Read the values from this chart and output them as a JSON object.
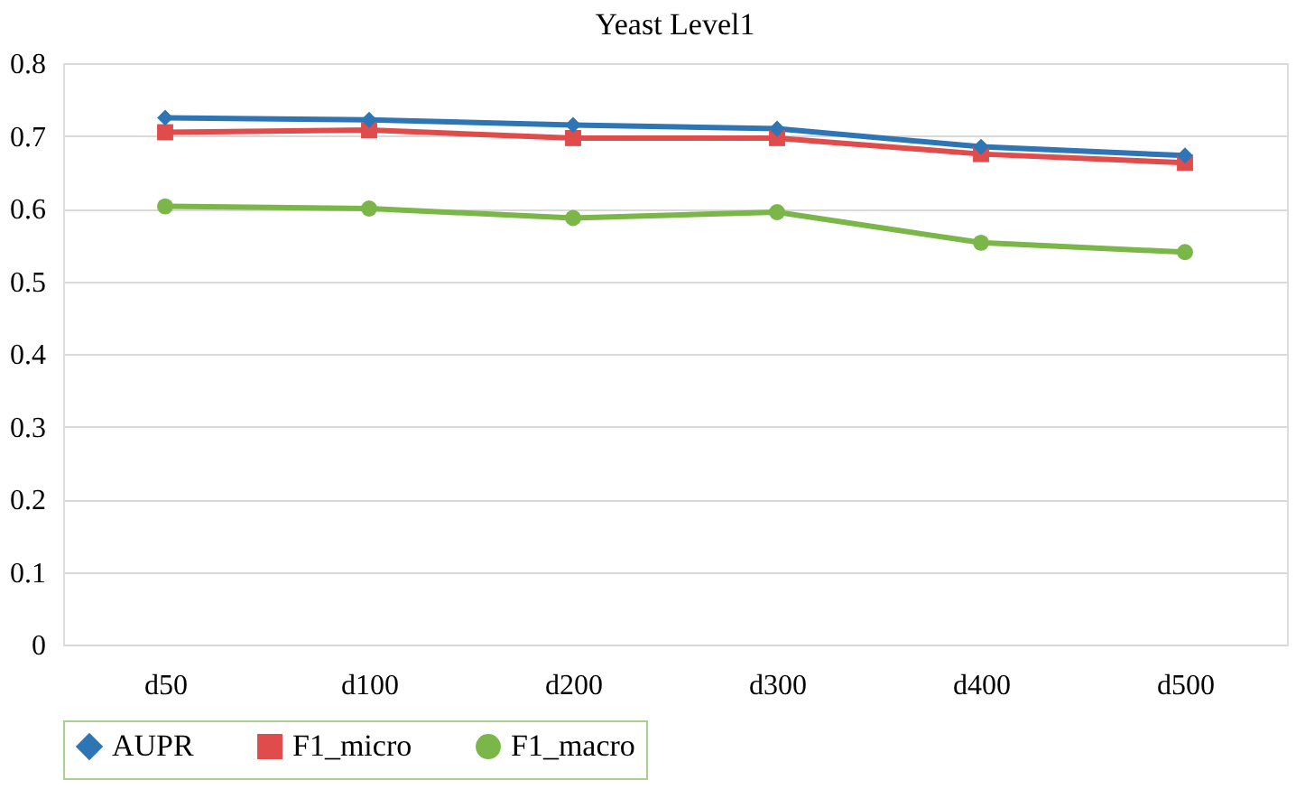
{
  "chart_data": {
    "type": "line",
    "title": "Yeast  Level1",
    "categories": [
      "d50",
      "d100",
      "d200",
      "d300",
      "d400",
      "d500"
    ],
    "series": [
      {
        "name": "AUPR",
        "color": "#2e75b6",
        "marker": "diamond",
        "values": [
          0.725,
          0.722,
          0.715,
          0.71,
          0.685,
          0.673
        ]
      },
      {
        "name": "F1_micro",
        "color": "#e04b4b",
        "marker": "square",
        "values": [
          0.705,
          0.708,
          0.697,
          0.697,
          0.675,
          0.663
        ]
      },
      {
        "name": "F1_macro",
        "color": "#7ab648",
        "marker": "circle",
        "values": [
          0.603,
          0.6,
          0.587,
          0.595,
          0.553,
          0.54
        ]
      }
    ],
    "ylim": [
      0,
      0.8
    ],
    "yticks": [
      0,
      0.1,
      0.2,
      0.3,
      0.4,
      0.5,
      0.6,
      0.7,
      0.8
    ],
    "grid": "y",
    "legend": "bottom",
    "line_style": "solid"
  }
}
